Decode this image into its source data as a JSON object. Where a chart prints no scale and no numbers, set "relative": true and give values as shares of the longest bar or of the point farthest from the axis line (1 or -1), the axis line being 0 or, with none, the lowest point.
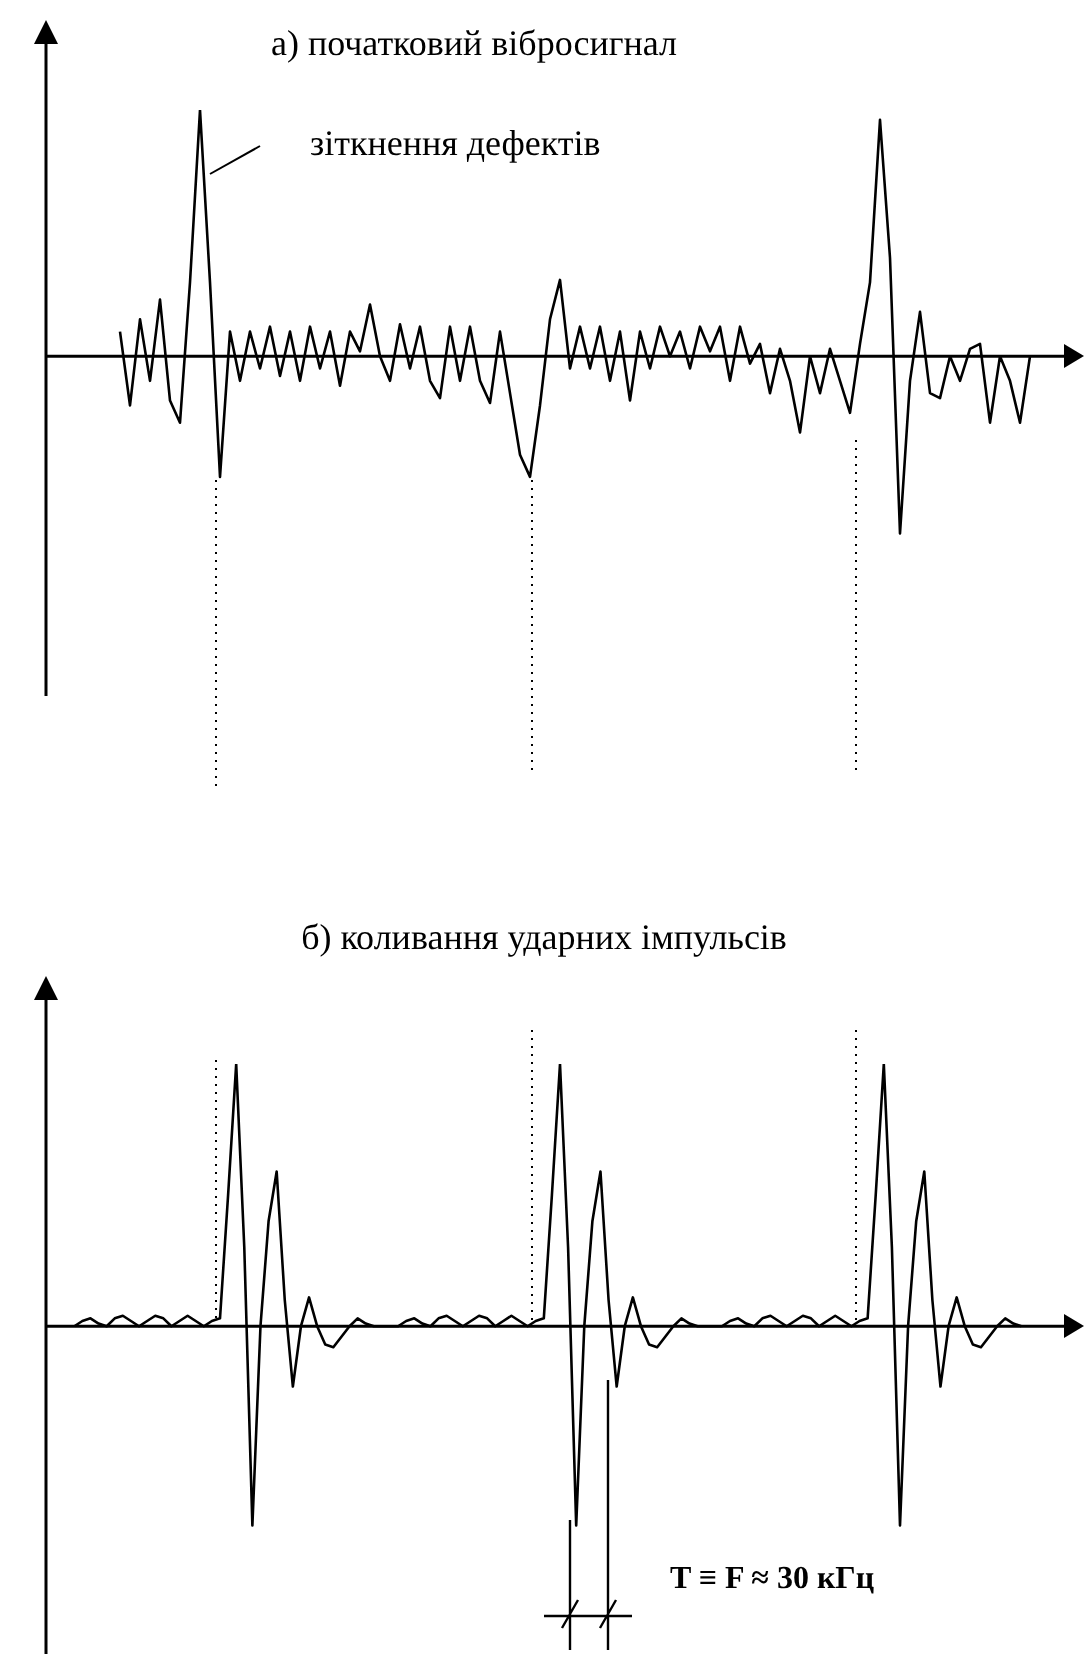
{
  "chart_data": [
    {
      "type": "line",
      "title": "а) початковий вібросигнал",
      "relative": true,
      "color": "#000000",
      "annotations": [
        "зіткнення дефектів"
      ],
      "categories": [
        null,
        null,
        null,
        null,
        null,
        null,
        null,
        null,
        null,
        null,
        null,
        null,
        null,
        null,
        null,
        null,
        null,
        null,
        null,
        null,
        null,
        null,
        null,
        null,
        null,
        null,
        null,
        null,
        null,
        null,
        null,
        null,
        null,
        null,
        null,
        null,
        null,
        null,
        null,
        null,
        null,
        null,
        null,
        null,
        null,
        null,
        null,
        null,
        null,
        null,
        null,
        null,
        null,
        null,
        null,
        null,
        null,
        null,
        null,
        null,
        null,
        null,
        null,
        null,
        null,
        null,
        null,
        null,
        null,
        null,
        null,
        null,
        null,
        null,
        null,
        null,
        null,
        null,
        null,
        null,
        null,
        null,
        null,
        null,
        null,
        null,
        null,
        null,
        null,
        null,
        null,
        null,
        null,
        null,
        null,
        null,
        null,
        null,
        null,
        null,
        null,
        null,
        null
      ],
      "values": [
        null,
        null,
        null,
        null,
        null,
        null,
        null,
        0.1,
        -0.2,
        0.15,
        -0.1,
        0.23,
        -0.18,
        -0.27,
        0.3,
        1.0,
        0.3,
        -0.49,
        0.1,
        -0.1,
        0.1,
        -0.05,
        0.12,
        -0.08,
        0.1,
        -0.1,
        0.12,
        -0.05,
        0.1,
        -0.12,
        0.1,
        0.02,
        0.21,
        0.0,
        -0.1,
        0.13,
        -0.05,
        0.12,
        -0.1,
        -0.17,
        0.12,
        -0.1,
        0.12,
        -0.1,
        -0.19,
        0.1,
        -0.15,
        -0.4,
        -0.49,
        -0.2,
        0.15,
        0.31,
        -0.05,
        0.12,
        -0.05,
        0.12,
        -0.1,
        0.1,
        -0.18,
        0.1,
        -0.05,
        0.12,
        0.0,
        0.1,
        -0.05,
        0.12,
        0.02,
        0.12,
        -0.1,
        0.12,
        -0.03,
        0.05,
        -0.15,
        0.03,
        -0.1,
        -0.31,
        0.0,
        -0.15,
        0.03,
        -0.1,
        -0.23,
        0.05,
        0.3,
        0.96,
        0.4,
        -0.72,
        -0.1,
        0.18,
        -0.15,
        -0.17,
        0.0,
        -0.1,
        0.03,
        0.05,
        -0.27,
        0.0,
        -0.1,
        -0.27,
        0.0,
        null,
        null,
        null,
        null
      ]
    },
    {
      "type": "line",
      "title": "б) коливання ударних імпульсів",
      "relative": true,
      "color": "#000000",
      "annotations": [
        "T ≡ F ≈ 30 кГц"
      ],
      "categories": [
        null,
        null,
        null,
        null,
        null,
        null,
        null,
        null,
        null,
        null,
        null,
        null,
        null,
        null,
        null,
        null,
        null,
        null,
        null,
        null,
        null,
        null,
        null,
        null,
        null,
        null,
        null,
        null,
        null,
        null,
        null,
        null,
        null,
        null,
        null,
        null,
        null,
        null,
        null,
        null,
        null,
        null,
        null,
        null,
        null,
        null,
        null,
        null,
        null,
        null,
        null,
        null,
        null,
        null,
        null,
        null,
        null,
        null,
        null,
        null,
        null,
        null,
        null,
        null,
        null,
        null,
        null,
        null,
        null,
        null,
        null,
        null,
        null,
        null,
        null,
        null,
        null,
        null,
        null,
        null,
        null,
        null,
        null,
        null,
        null,
        null,
        null,
        null,
        null,
        null,
        null,
        null,
        null,
        null,
        null,
        null,
        null,
        null,
        null,
        null,
        null,
        null,
        null,
        null,
        null,
        null,
        null,
        null,
        null,
        null,
        null,
        null,
        null,
        null,
        null,
        null,
        null,
        null,
        null,
        null,
        null,
        null,
        null,
        null,
        null,
        null,
        null
      ],
      "values": [
        null,
        null,
        null,
        0.0,
        0.02,
        0.03,
        0.01,
        0.0,
        0.03,
        0.04,
        0.02,
        0.0,
        0.02,
        0.04,
        0.03,
        0.0,
        0.02,
        0.04,
        0.02,
        0.0,
        0.02,
        0.03,
        0.5,
        1.0,
        0.3,
        -0.76,
        0.0,
        0.4,
        0.59,
        0.1,
        -0.23,
        0.0,
        0.11,
        0.0,
        -0.07,
        -0.08,
        -0.04,
        0.0,
        0.03,
        0.01,
        0.0,
        0.0,
        0.0,
        0.0,
        0.02,
        0.03,
        0.01,
        0.0,
        0.03,
        0.04,
        0.02,
        0.0,
        0.02,
        0.04,
        0.03,
        0.0,
        0.02,
        0.04,
        0.02,
        0.0,
        0.02,
        0.03,
        0.5,
        1.0,
        0.3,
        -0.76,
        0.0,
        0.4,
        0.59,
        0.1,
        -0.23,
        0.0,
        0.11,
        0.0,
        -0.07,
        -0.08,
        -0.04,
        0.0,
        0.03,
        0.01,
        0.0,
        0.0,
        0.0,
        0.0,
        0.02,
        0.03,
        0.01,
        0.0,
        0.03,
        0.04,
        0.02,
        0.0,
        0.02,
        0.04,
        0.03,
        0.0,
        0.02,
        0.04,
        0.02,
        0.0,
        0.02,
        0.03,
        0.5,
        1.0,
        0.3,
        -0.76,
        0.0,
        0.4,
        0.59,
        0.1,
        -0.23,
        0.0,
        0.11,
        0.0,
        -0.07,
        -0.08,
        -0.04,
        0.0,
        0.03,
        0.01,
        0.0,
        null,
        null,
        null,
        null,
        null,
        null
      ]
    }
  ]
}
